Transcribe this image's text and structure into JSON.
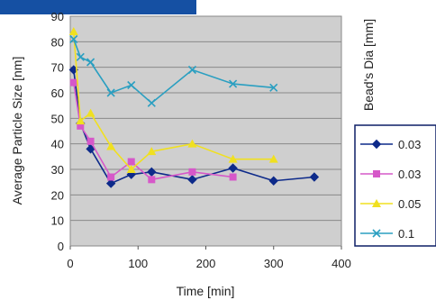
{
  "chart_data": {
    "type": "line",
    "title": "",
    "xlabel": "Time [min]",
    "ylabel": "Average Particle Size [nm]",
    "legend_title": "Bead's Dia [mm]",
    "legend_position": "right",
    "xlim": [
      0,
      400
    ],
    "ylim": [
      0,
      90
    ],
    "xticks": [
      0,
      100,
      200,
      300,
      400
    ],
    "yticks": [
      0,
      10,
      20,
      30,
      40,
      50,
      60,
      70,
      80,
      90
    ],
    "grid": true,
    "series": [
      {
        "name": "0.03",
        "color": "#0d2a8a",
        "marker": "diamond",
        "x": [
          5,
          15,
          30,
          60,
          90,
          120,
          180,
          240,
          300,
          360
        ],
        "y": [
          69,
          48,
          38,
          24.5,
          28,
          29,
          26,
          30.5,
          25.5,
          27
        ]
      },
      {
        "name": "0.03",
        "color": "#d658c9",
        "marker": "square",
        "x": [
          5,
          15,
          30,
          60,
          90,
          120,
          180,
          240
        ],
        "y": [
          64,
          47,
          41,
          27,
          33,
          26,
          29,
          27
        ]
      },
      {
        "name": "0.05",
        "color": "#f0e020",
        "marker": "triangle",
        "x": [
          5,
          15,
          30,
          60,
          90,
          120,
          180,
          240,
          300
        ],
        "y": [
          84,
          49,
          52,
          39,
          30,
          37,
          40,
          34,
          34
        ]
      },
      {
        "name": "0.1",
        "color": "#2a9fc1",
        "marker": "x",
        "x": [
          5,
          15,
          30,
          60,
          90,
          120,
          180,
          240,
          300
        ],
        "y": [
          81,
          74,
          72,
          60,
          63,
          56,
          69,
          63.5,
          62
        ]
      }
    ]
  }
}
